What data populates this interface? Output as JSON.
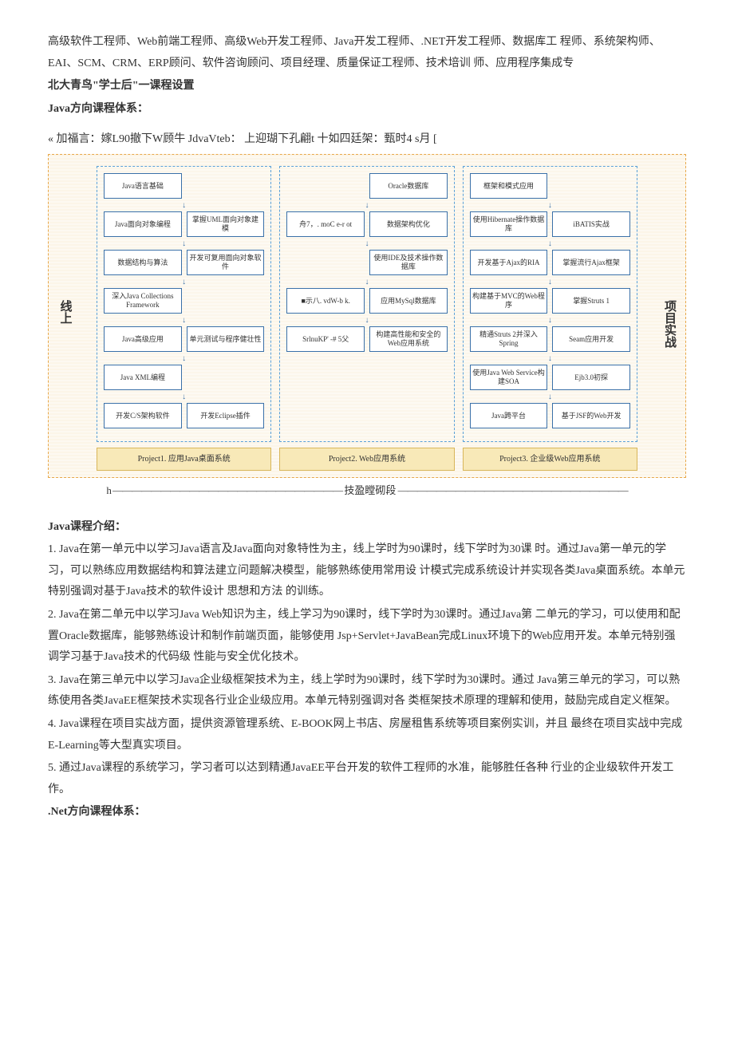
{
  "intro": "高级软件工程师、Web前端工程师、高级Web开发工程师、Java开发工程师、.NET开发工程师、数据库工 程师、系统架构师、EAI、SCM、CRM、ERP顾问、软件咨询顾问、项目经理、质量保证工程师、技术培训 师、应用程序集成专",
  "h1": "北大青鸟\"学士后\"一课程设置",
  "h2": "Java方向课程体系：",
  "diagramHeader": "« 加福言：嫁L90撤下W顾牛  JdvaVteb：  上迎瑚下孔翩t  十如四廷架：甄时4 s月 [",
  "leftLabel": "线上",
  "rightLabel": "项目实战",
  "col1": {
    "r1": [
      "Java语言基础"
    ],
    "r2": [
      "Java面向对象编程",
      "掌握UML面向对象建模"
    ],
    "r3": [
      "数据结构与算法",
      "开发可复用面向对象软件"
    ],
    "r4": [
      "深入Java Collections Framework"
    ],
    "r5": [
      "Java高级应用",
      "单元测试与程序健壮性"
    ],
    "r6": [
      "Java XML编程"
    ],
    "r7": [
      "开发C/S架构软件",
      "开发Eclipse插件"
    ]
  },
  "col2": {
    "r1": [
      "Oracle数据库"
    ],
    "r2": [
      "舟7，. moC e-r ot",
      "数据架构优化"
    ],
    "r3": [
      "使用IDE及技术操作数据库"
    ],
    "r4": [
      "■示八.  vdW-b k.",
      "应用MySql数据库"
    ],
    "r5": [
      "SrlnuKP' -#  5父",
      "构建高性能和安全的Web应用系统"
    ]
  },
  "col3": {
    "r1": [
      "框架和模式应用"
    ],
    "r2": [
      "使用Hibernate操作数据库",
      "iBATIS实战"
    ],
    "r3": [
      "开发基于Ajax的RIA",
      "掌握流行Ajax框架"
    ],
    "r4": [
      "构建基于MVC的Web程序",
      "掌握Struts 1"
    ],
    "r5": [
      "精通Struts 2并深入Spring",
      "Seam应用开发"
    ],
    "r6": [
      "使用Java Web Service构建SOA",
      "Ejb3.0初探"
    ],
    "r7": [
      "Java跨平台",
      "基于JSF的Web开发"
    ]
  },
  "projects": [
    "Project1.  应用Java桌面系统",
    "Project2.  Web应用系统",
    "Project3.  企业级Web应用系统"
  ],
  "diagramFooter": "技盈瞠砌段",
  "h3": "Java课程介绍：",
  "p1": "1. Java在第一单元中以学习Java语言及Java面向对象特性为主，线上学时为90课时，线下学时为30课 时。通过Java第一单元的学习，可以熟练应用数据结构和算法建立问题解决模型，能够熟练使用常用设  计模式完成系统设计并实现各类Java桌面系统。本单元特别强调对基于Java技术的软件设计 思想和方法 的训练。",
  "p2": "2. Java在第二单元中以学习Java Web知识为主，线上学习为90课时，线下学时为30课时。通过Java第 二单元的学习，可以使用和配置Oracle数据库，能够熟练设计和制作前端页面，能够使用  Jsp+Servlet+JavaBean完成Linux环境下的Web应用开发。本单元特别强调学习基于Java技术的代码级 性能与安全优化技术。",
  "p3": "3. Java在第三单元中以学习Java企业级框架技术为主，线上学时为90课时，线下学时为30课时。通过 Java第三单元的学习，可以熟练使用各类JavaEE框架技术实现各行业企业级应用。本单元特别强调对各  类框架技术原理的理解和使用，鼓励完成自定义框架。",
  "p4": "4. Java课程在项目实战方面，提供资源管理系统、E-BOOK网上书店、房屋租售系统等项目案例实训，并且 最终在项目实战中完成E-Learning等大型真实项目。",
  "p5": "5. 通过Java课程的系统学习，学习者可以达到精通JavaEE平台开发的软件工程师的水准，能够胜任各种 行业的企业级软件开发工作。",
  "h4": ".Net方向课程体系："
}
